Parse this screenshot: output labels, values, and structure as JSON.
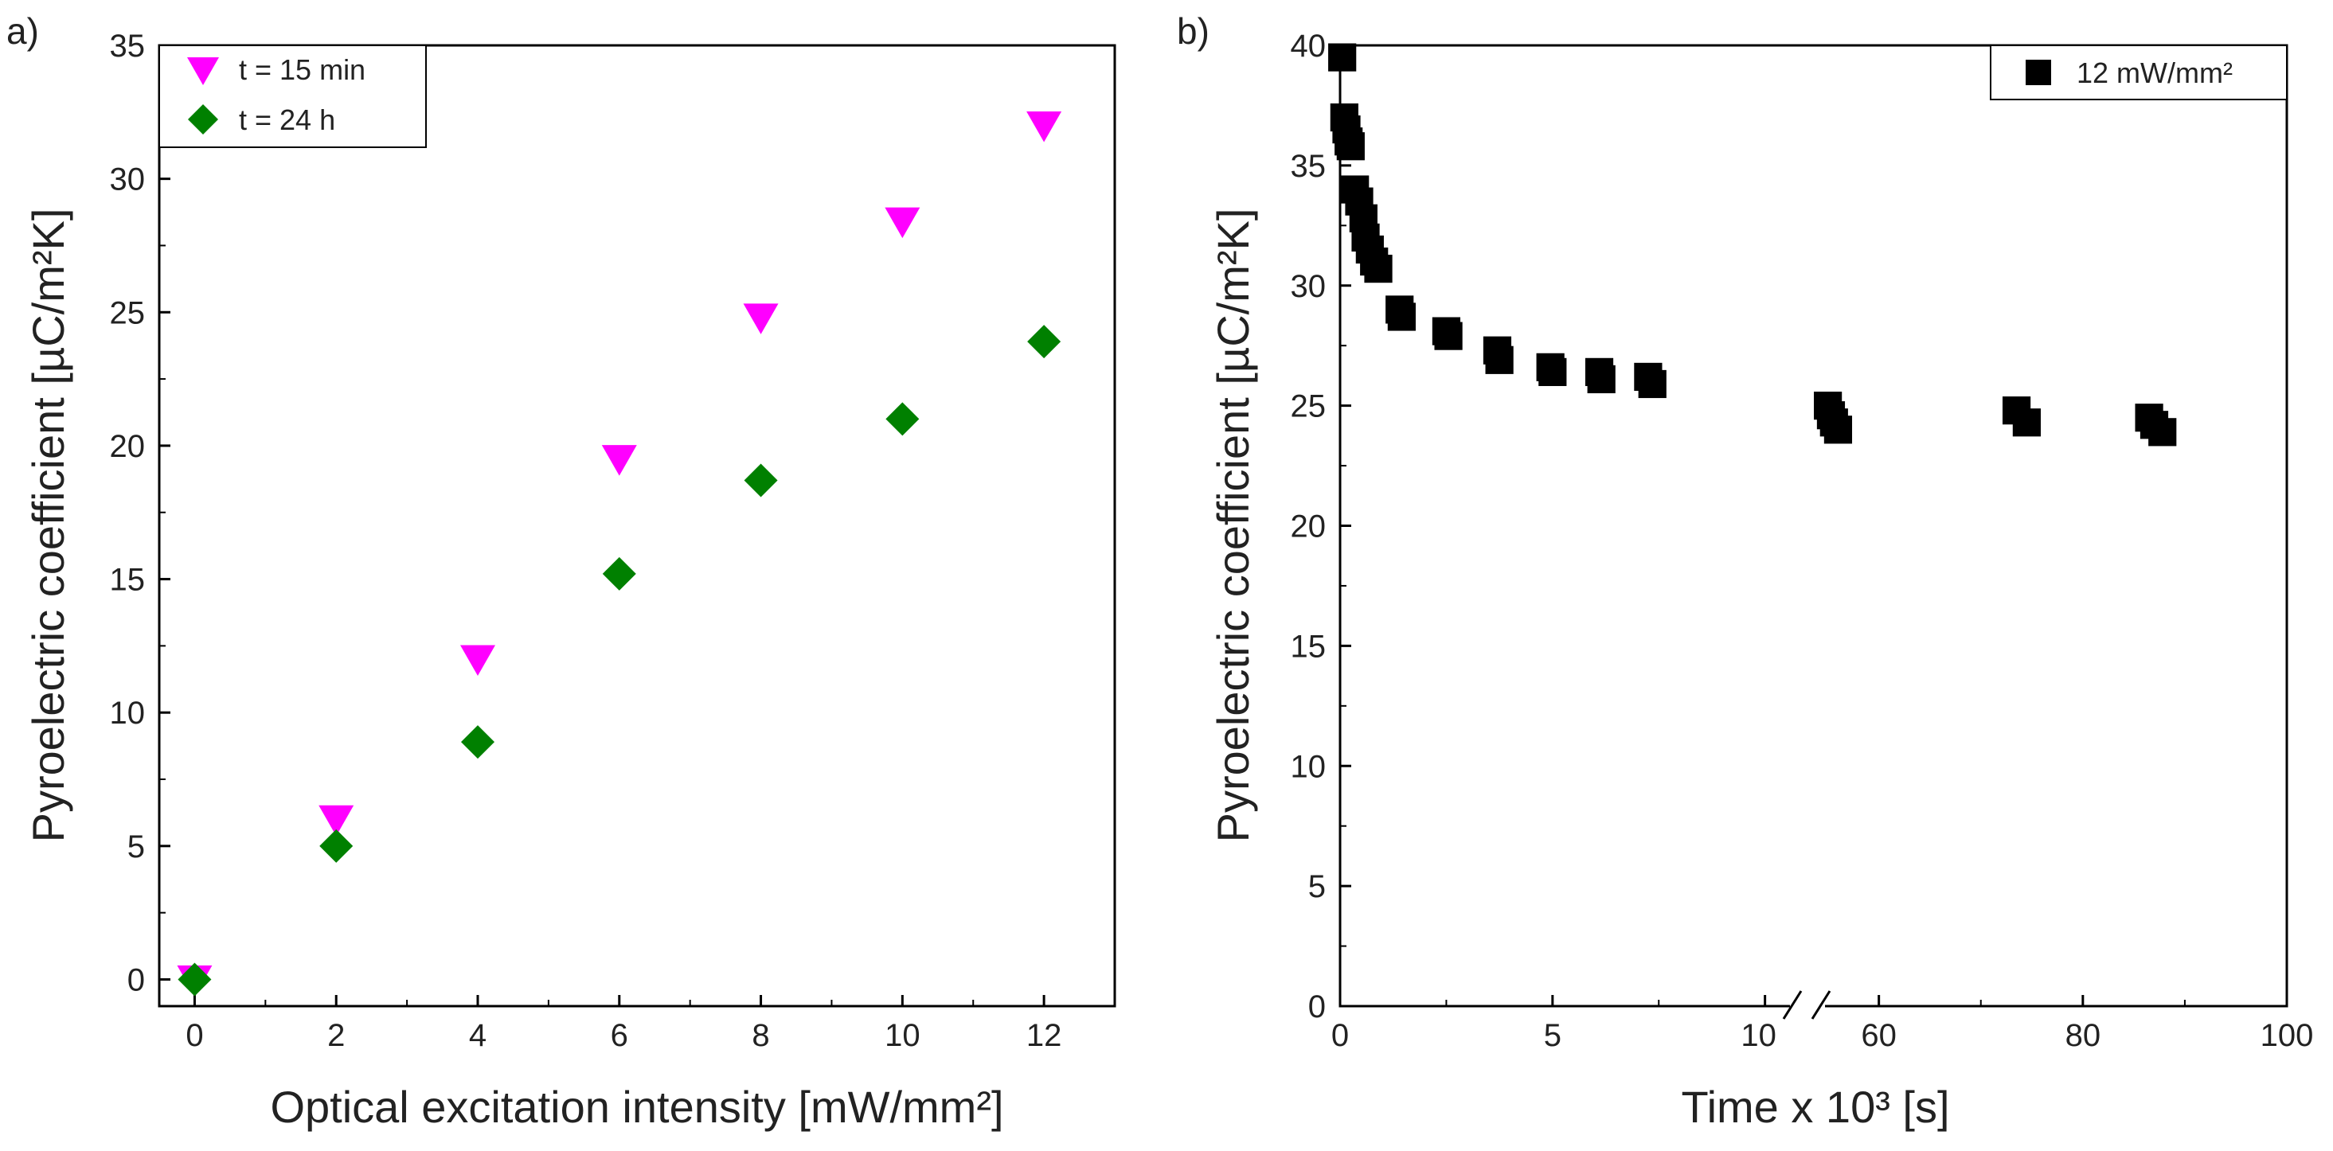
{
  "chart_data": [
    {
      "panel_label": "a)",
      "type": "scatter",
      "xlabel": "Optical excitation intensity [mW/mm²]",
      "ylabel": "Pyroelectric coefficient [µC/m²K]",
      "xlim": [
        -0.5,
        13
      ],
      "ylim": [
        -1,
        35
      ],
      "xticks": [
        0,
        2,
        4,
        6,
        8,
        10,
        12
      ],
      "yticks": [
        0,
        5,
        10,
        15,
        20,
        25,
        30,
        35
      ],
      "legend_position": "top-left",
      "series": [
        {
          "name": "t = 15 min",
          "marker": "triangle-down",
          "color": "#ff00ff",
          "points": [
            [
              0,
              0
            ],
            [
              2,
              6.0
            ],
            [
              4,
              12.0
            ],
            [
              6,
              19.5
            ],
            [
              8,
              24.8
            ],
            [
              10,
              28.4
            ],
            [
              12,
              32.0
            ]
          ]
        },
        {
          "name": "t = 24 h",
          "marker": "diamond",
          "color": "#008000",
          "points": [
            [
              0,
              0
            ],
            [
              2,
              5.0
            ],
            [
              4,
              8.9
            ],
            [
              6,
              15.2
            ],
            [
              8,
              18.7
            ],
            [
              10,
              21.0
            ],
            [
              12,
              23.9
            ]
          ]
        }
      ]
    },
    {
      "panel_label": "b)",
      "type": "scatter",
      "xlabel": "Time x 10³ [s]",
      "ylabel": "Pyroelectric coefficient [µC/m²K]",
      "ylim": [
        0,
        40
      ],
      "yticks": [
        0,
        5,
        10,
        15,
        20,
        25,
        30,
        35,
        40
      ],
      "axis_break": true,
      "segments": [
        {
          "xlim": [
            0,
            11
          ],
          "xticks": [
            0,
            5
          ],
          "end_tick": 10
        },
        {
          "xlim": [
            53,
            100
          ],
          "xticks": [
            60,
            80,
            100
          ]
        }
      ],
      "legend_position": "top-right",
      "series": [
        {
          "name": "12 mW/mm²",
          "marker": "square",
          "color": "#000000",
          "points": [
            [
              0.05,
              39.5
            ],
            [
              0.1,
              37.0
            ],
            [
              0.15,
              36.5
            ],
            [
              0.2,
              36.0
            ],
            [
              0.25,
              35.8
            ],
            [
              0.35,
              34.0
            ],
            [
              0.45,
              33.5
            ],
            [
              0.55,
              32.8
            ],
            [
              0.6,
              32.0
            ],
            [
              0.7,
              31.5
            ],
            [
              0.8,
              31.0
            ],
            [
              0.9,
              30.7
            ],
            [
              1.4,
              29.0
            ],
            [
              1.45,
              28.7
            ],
            [
              2.5,
              28.1
            ],
            [
              2.55,
              27.9
            ],
            [
              3.7,
              27.3
            ],
            [
              3.75,
              26.9
            ],
            [
              4.95,
              26.6
            ],
            [
              5.0,
              26.4
            ],
            [
              6.1,
              26.4
            ],
            [
              6.15,
              26.1
            ],
            [
              7.25,
              26.2
            ],
            [
              7.35,
              25.9
            ],
            [
              55.0,
              25.0
            ],
            [
              55.3,
              24.6
            ],
            [
              55.6,
              24.3
            ],
            [
              56.0,
              24.0
            ],
            [
              73.5,
              24.8
            ],
            [
              74.5,
              24.3
            ],
            [
              86.5,
              24.5
            ],
            [
              87.0,
              24.2
            ],
            [
              87.8,
              23.9
            ]
          ]
        }
      ]
    }
  ]
}
